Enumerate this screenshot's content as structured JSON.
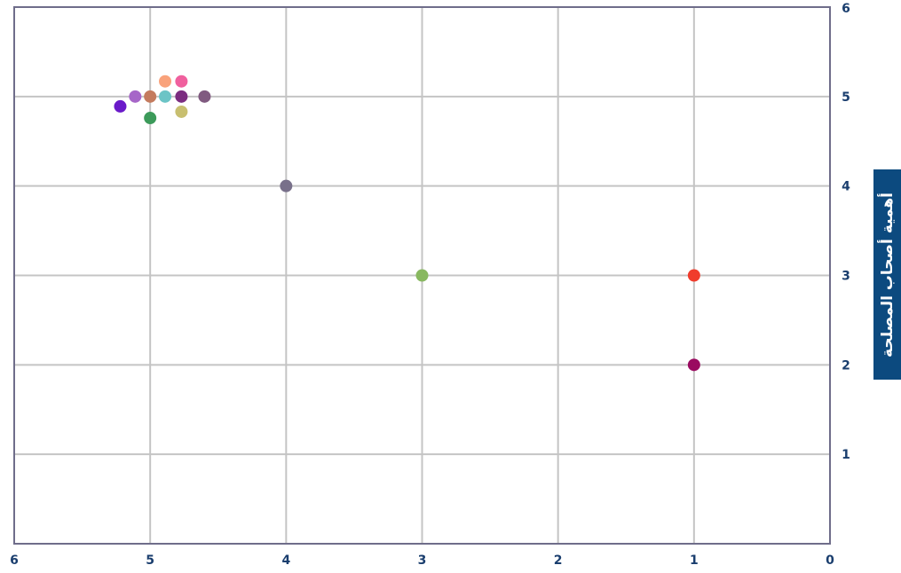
{
  "chart_data": {
    "type": "scatter",
    "title": "",
    "xlabel": "",
    "ylabel": "أهمية أصحاب المصلحة",
    "x_reversed": true,
    "xlim": [
      0,
      6
    ],
    "ylim": [
      0,
      6
    ],
    "x_ticks": [
      "0",
      "1",
      "2",
      "3",
      "4",
      "5",
      "6"
    ],
    "y_ticks": [
      "1",
      "2",
      "3",
      "4",
      "5",
      "6"
    ],
    "grid": true,
    "points": [
      {
        "x": 5.22,
        "y": 4.89,
        "color": "#6a1ac9"
      },
      {
        "x": 5.11,
        "y": 5.0,
        "color": "#a666c8"
      },
      {
        "x": 5.0,
        "y": 5.0,
        "color": "#c47b5e"
      },
      {
        "x": 4.89,
        "y": 5.17,
        "color": "#f9a27b"
      },
      {
        "x": 4.77,
        "y": 5.17,
        "color": "#f0609e"
      },
      {
        "x": 4.89,
        "y": 5.0,
        "color": "#6cc4c6"
      },
      {
        "x": 4.77,
        "y": 5.0,
        "color": "#7b2d80"
      },
      {
        "x": 4.6,
        "y": 5.0,
        "color": "#805a80"
      },
      {
        "x": 4.77,
        "y": 4.83,
        "color": "#c8bf70"
      },
      {
        "x": 5.0,
        "y": 4.76,
        "color": "#3c9a5a"
      },
      {
        "x": 4.0,
        "y": 4.0,
        "color": "#78708a"
      },
      {
        "x": 3.0,
        "y": 3.0,
        "color": "#88b860"
      },
      {
        "x": 1.0,
        "y": 3.0,
        "color": "#f03c2c"
      },
      {
        "x": 1.0,
        "y": 2.0,
        "color": "#9a0a60"
      }
    ]
  }
}
